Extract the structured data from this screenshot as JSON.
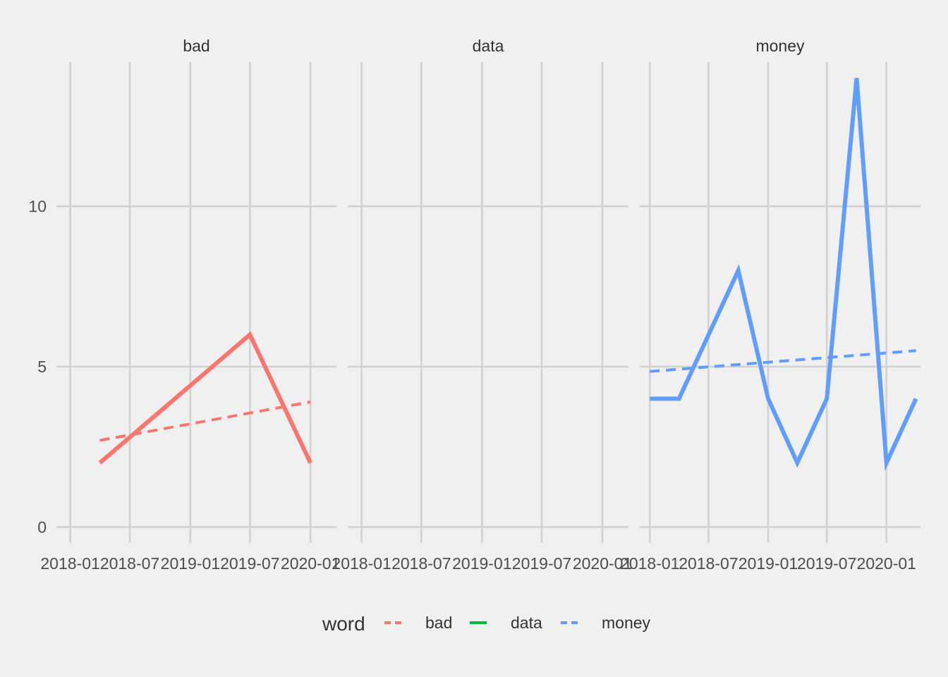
{
  "chart_data": {
    "type": "line",
    "facets": [
      "bad",
      "data",
      "money"
    ],
    "x_ticks": [
      "2018-01",
      "2018-07",
      "2019-01",
      "2019-07",
      "2020-01"
    ],
    "x_tick_dates": [
      "2018-01-01",
      "2018-07-01",
      "2019-01-01",
      "2019-07-01",
      "2020-01-01"
    ],
    "y_ticks": [
      0,
      5,
      10
    ],
    "ylim": [
      -0.5,
      14.5
    ],
    "grid": true,
    "legend": {
      "title": "word",
      "position": "bottom",
      "entries": [
        {
          "name": "bad",
          "color": "#F8766D"
        },
        {
          "name": "data",
          "color": "#00BA38"
        },
        {
          "name": "money",
          "color": "#619CFF"
        }
      ]
    },
    "panels": [
      {
        "facet": "bad",
        "xlim": [
          "2017-11-20",
          "2020-03-20"
        ],
        "color": "#F8766D",
        "series": {
          "x": [
            "2018-04-01",
            "2019-07-01",
            "2020-01-01"
          ],
          "y": [
            2,
            6,
            2
          ]
        },
        "trend": {
          "x": [
            "2018-04-01",
            "2020-01-01"
          ],
          "y": [
            2.7,
            3.9
          ]
        }
      },
      {
        "facet": "data",
        "xlim": [
          "2017-11-20",
          "2020-03-20"
        ],
        "color": "#00BA38",
        "series": {
          "x": [],
          "y": []
        },
        "trend": {
          "x": [],
          "y": []
        }
      },
      {
        "facet": "money",
        "xlim": [
          "2017-12-01",
          "2020-04-15"
        ],
        "color": "#619CFF",
        "series": {
          "x": [
            "2018-01-01",
            "2018-04-01",
            "2018-10-01",
            "2019-01-01",
            "2019-04-01",
            "2019-07-01",
            "2019-10-01",
            "2020-01-01",
            "2020-04-01"
          ],
          "y": [
            4,
            4,
            8,
            4,
            2,
            4,
            14,
            2,
            4
          ]
        },
        "trend": {
          "x": [
            "2018-01-01",
            "2020-04-01"
          ],
          "y": [
            4.85,
            5.5
          ]
        }
      }
    ]
  }
}
